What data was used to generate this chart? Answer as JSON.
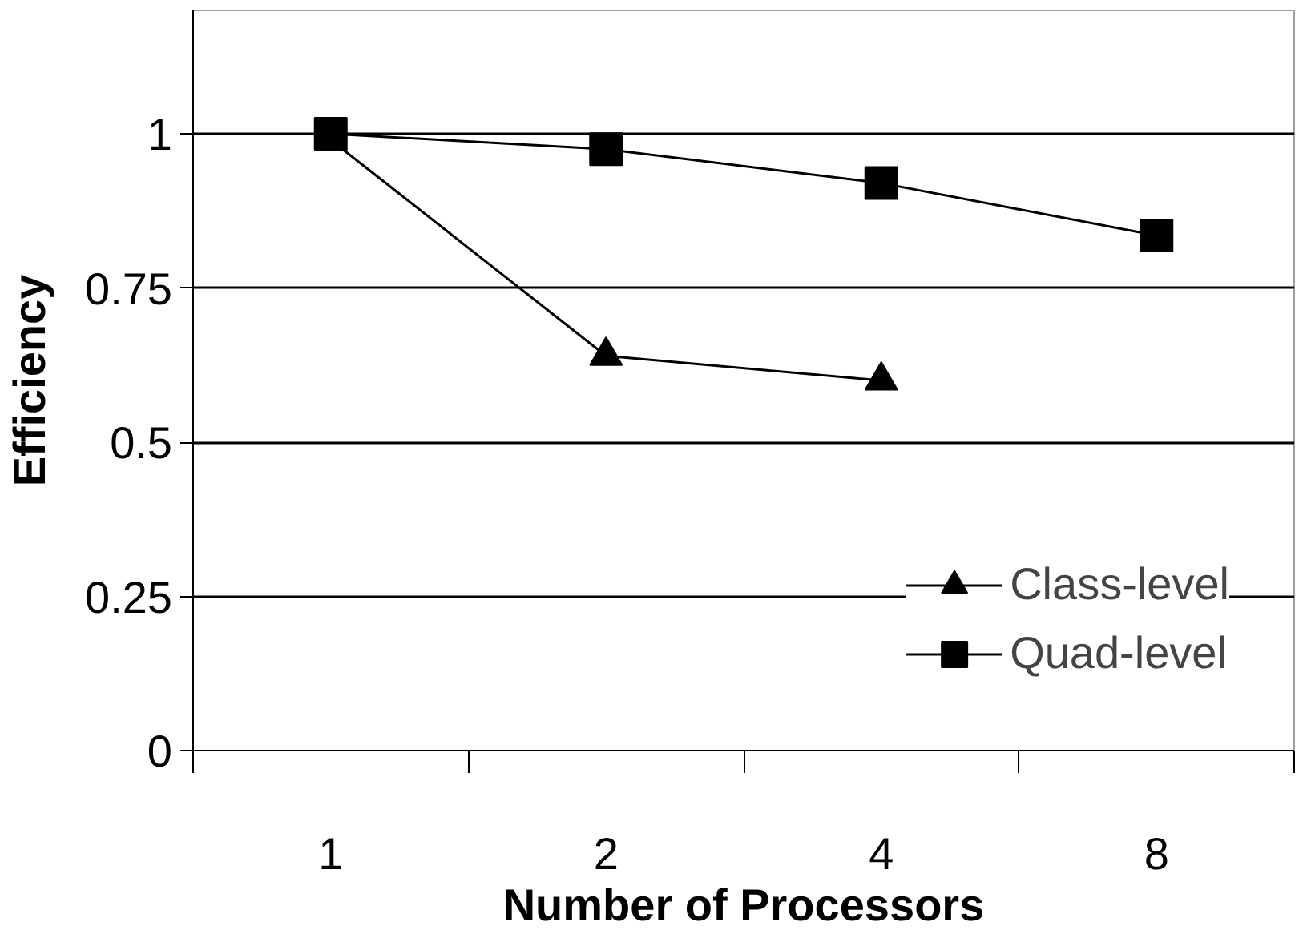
{
  "chart_data": {
    "type": "line",
    "xlabel": "Number of Processors",
    "ylabel": "Efficiency",
    "categories": [
      "1",
      "2",
      "4",
      "8"
    ],
    "series": [
      {
        "name": "Class-level",
        "color": "#000000",
        "marker": "triangle",
        "values": [
          0.99,
          0.64,
          0.6,
          null
        ]
      },
      {
        "name": "Quad-level",
        "color": "#000000",
        "marker": "square",
        "values": [
          1.0,
          0.975,
          0.92,
          0.835
        ]
      }
    ],
    "ylim": [
      0,
      1.2
    ],
    "yticks": [
      0,
      0.25,
      0.5,
      0.75,
      1
    ],
    "grid": "y",
    "legend": "bottom right",
    "line_style": "solid"
  }
}
